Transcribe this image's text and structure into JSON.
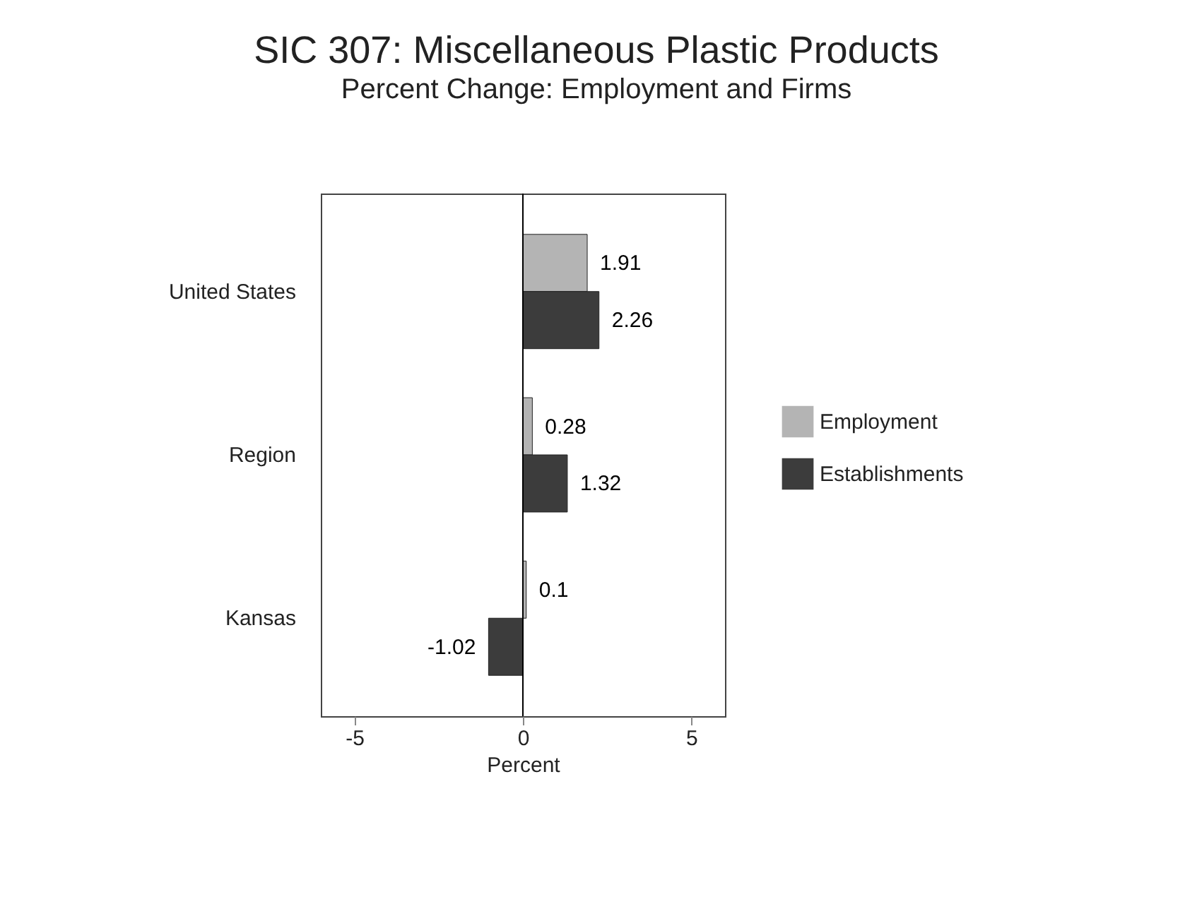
{
  "chart_data": {
    "type": "bar",
    "orientation": "horizontal",
    "title": "SIC 307: Miscellaneous Plastic Products",
    "subtitle": "Percent Change: Employment and Firms",
    "categories": [
      "United States",
      "Region",
      "Kansas"
    ],
    "series": [
      {
        "name": "Employment",
        "color": "#b4b4b4",
        "values": [
          1.91,
          0.28,
          0.1
        ]
      },
      {
        "name": "Establishments",
        "color": "#3c3c3c",
        "values": [
          2.26,
          1.32,
          -1.02
        ]
      }
    ],
    "xlabel": "Percent",
    "xlim": [
      -6,
      6
    ],
    "xticks": [
      -5,
      0,
      5
    ],
    "ref_lines": [
      {
        "axis": "x",
        "value": 0
      }
    ],
    "data_labels": true,
    "grid": false,
    "legend": "right"
  }
}
